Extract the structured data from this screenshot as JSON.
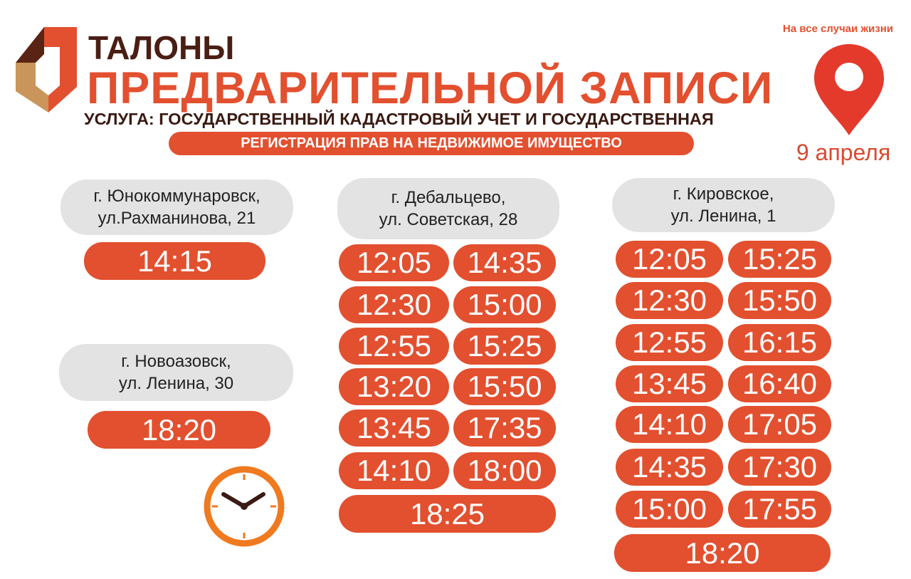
{
  "header": {
    "title_line1": "ТАЛОНЫ",
    "title_line2": "ПРЕДВАРИТЕЛЬНОЙ ЗАПИСИ",
    "service_line1": "УСЛУГА: ГОСУДАРСТВЕННЫЙ КАДАСТРОВЫЙ УЧЕТ И ГОСУДАРСТВЕННАЯ",
    "service_line2": "РЕГИСТРАЦИЯ ПРАВ НА НЕДВИЖИМОЕ ИМУЩЕСТВО",
    "slogan": "На все случаи жизни",
    "date": "9 апреля",
    "logo_icon": "mfc-logo",
    "pin_icon": "location-pin-icon"
  },
  "colors": {
    "accent": "#e2502f",
    "dark": "#4a1e14",
    "gold": "#c9955a",
    "pill_gray": "#e3e3e3",
    "clock": "#f07a1f"
  },
  "locations": [
    {
      "address": [
        "г. Юнокоммунаровск,",
        "ул.Рахманинова, 21"
      ],
      "times": [
        "14:15"
      ]
    },
    {
      "address": [
        "г. Новоазовск,",
        "ул. Ленина, 30"
      ],
      "times": [
        "18:20"
      ]
    },
    {
      "address": [
        "г. Дебальцево,",
        "ул. Советская, 28"
      ],
      "times": [
        "12:05",
        "14:35",
        "12:30",
        "15:00",
        "12:55",
        "15:25",
        "13:20",
        "15:50",
        "13:45",
        "17:35",
        "14:10",
        "18:00",
        "18:25"
      ]
    },
    {
      "address": [
        "г. Кировское,",
        "ул. Ленина, 1"
      ],
      "times": [
        "12:05",
        "15:25",
        "12:30",
        "15:50",
        "12:55",
        "16:15",
        "13:45",
        "16:40",
        "14:10",
        "17:05",
        "14:35",
        "17:30",
        "15:00",
        "17:55",
        "18:20"
      ]
    }
  ]
}
